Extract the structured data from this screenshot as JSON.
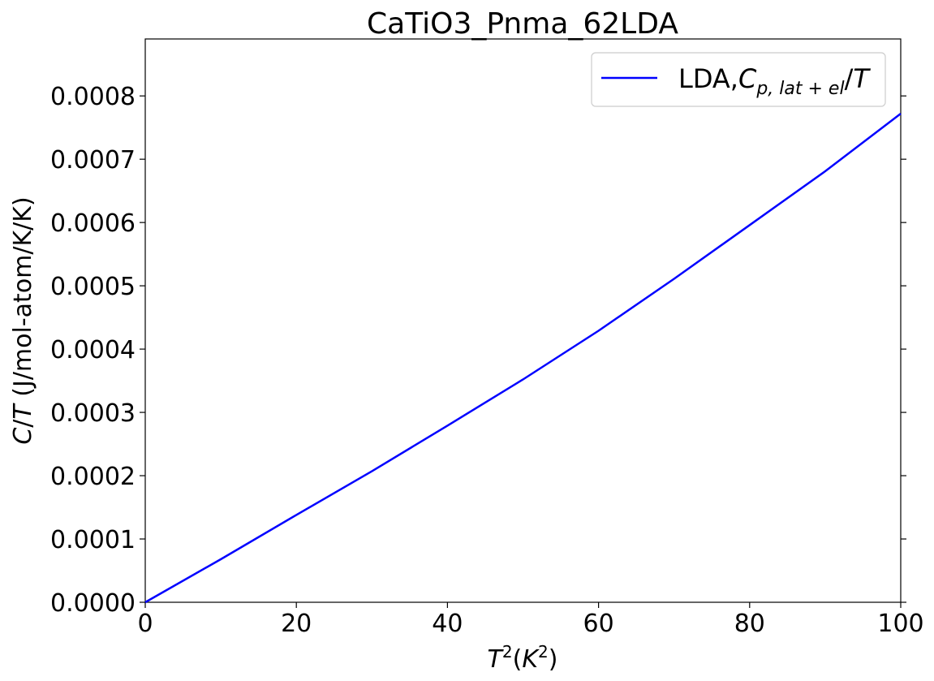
{
  "chart_data": {
    "type": "line",
    "title": "CaTiO3_Pnma_62LDA",
    "xlabel": {
      "T": "T",
      "sup": "2",
      "open": "(",
      "K": "K",
      "ksup": "2",
      "close": ")"
    },
    "ylabel": {
      "C": "C",
      "slash": "/",
      "T": "T",
      "rest": " (J/mol-atom/K/K)"
    },
    "xlim": [
      0,
      100
    ],
    "ylim": [
      0,
      0.00089
    ],
    "xticks": [
      0,
      20,
      40,
      60,
      80,
      100
    ],
    "xtick_labels": [
      "0",
      "20",
      "40",
      "60",
      "80",
      "100"
    ],
    "yticks": [
      0,
      0.0001,
      0.0002,
      0.0003,
      0.0004,
      0.0005,
      0.0006,
      0.0007,
      0.0008
    ],
    "ytick_labels": [
      "0.0000",
      "0.0001",
      "0.0002",
      "0.0003",
      "0.0004",
      "0.0005",
      "0.0006",
      "0.0007",
      "0.0008"
    ],
    "grid": false,
    "legend_position": "top-right",
    "series": [
      {
        "name": {
          "prefix": "LDA,",
          "C": "C",
          "sub": "p, lat + el",
          "slash": "/",
          "T": "T"
        },
        "color": "#0000ff",
        "x": [
          0,
          10,
          20,
          30,
          40,
          50,
          60,
          70,
          80,
          90,
          100
        ],
        "y": [
          0,
          6.8e-05,
          0.000138,
          0.000207,
          0.000279,
          0.000352,
          0.000429,
          0.000511,
          0.000596,
          0.000681,
          0.000772
        ]
      }
    ]
  }
}
